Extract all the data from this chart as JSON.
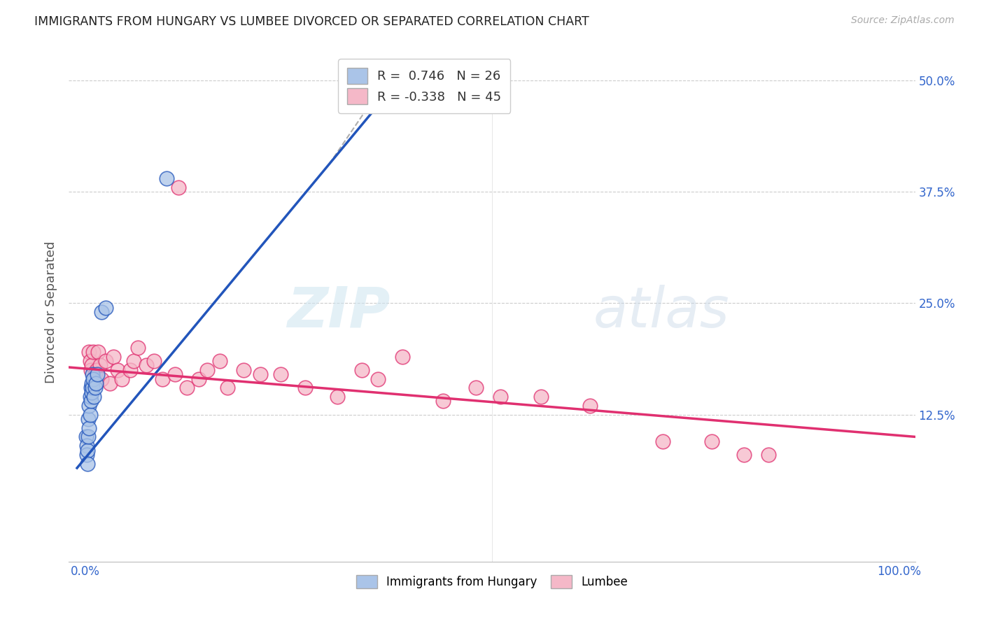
{
  "title": "IMMIGRANTS FROM HUNGARY VS LUMBEE DIVORCED OR SEPARATED CORRELATION CHART",
  "source": "Source: ZipAtlas.com",
  "ylabel": "Divorced or Separated",
  "legend_bottom": [
    "Immigrants from Hungary",
    "Lumbee"
  ],
  "r_hungary": 0.746,
  "n_hungary": 26,
  "r_lumbee": -0.338,
  "n_lumbee": 45,
  "xlim": [
    0.0,
    1.0
  ],
  "ylim": [
    0.0,
    0.52
  ],
  "ytick_labels_right": [
    "50.0%",
    "37.5%",
    "25.0%",
    "12.5%"
  ],
  "ytick_vals_right": [
    0.5,
    0.375,
    0.25,
    0.125
  ],
  "color_hungary": "#aac4e8",
  "color_lumbee": "#f5b8c8",
  "line_color_hungary": "#2255bb",
  "line_color_lumbee": "#e03070",
  "watermark_zip": "ZIP",
  "watermark_atlas": "atlas",
  "hungary_x": [
    0.001,
    0.002,
    0.002,
    0.003,
    0.003,
    0.004,
    0.004,
    0.005,
    0.005,
    0.006,
    0.006,
    0.007,
    0.007,
    0.008,
    0.008,
    0.009,
    0.009,
    0.01,
    0.011,
    0.012,
    0.013,
    0.015,
    0.02,
    0.025,
    0.1,
    0.35
  ],
  "hungary_y": [
    0.1,
    0.09,
    0.08,
    0.085,
    0.07,
    0.12,
    0.1,
    0.135,
    0.11,
    0.145,
    0.125,
    0.155,
    0.14,
    0.16,
    0.15,
    0.155,
    0.17,
    0.165,
    0.145,
    0.155,
    0.16,
    0.17,
    0.24,
    0.245,
    0.39,
    0.48
  ],
  "lumbee_x": [
    0.005,
    0.006,
    0.007,
    0.008,
    0.01,
    0.012,
    0.014,
    0.016,
    0.018,
    0.02,
    0.025,
    0.03,
    0.035,
    0.04,
    0.045,
    0.055,
    0.06,
    0.065,
    0.075,
    0.085,
    0.095,
    0.11,
    0.125,
    0.14,
    0.15,
    0.165,
    0.175,
    0.195,
    0.215,
    0.24,
    0.27,
    0.31,
    0.34,
    0.36,
    0.39,
    0.44,
    0.48,
    0.51,
    0.56,
    0.62,
    0.71,
    0.77,
    0.81,
    0.84,
    0.115
  ],
  "lumbee_y": [
    0.195,
    0.185,
    0.175,
    0.18,
    0.195,
    0.17,
    0.175,
    0.195,
    0.18,
    0.165,
    0.185,
    0.16,
    0.19,
    0.175,
    0.165,
    0.175,
    0.185,
    0.2,
    0.18,
    0.185,
    0.165,
    0.17,
    0.155,
    0.165,
    0.175,
    0.185,
    0.155,
    0.175,
    0.17,
    0.17,
    0.155,
    0.145,
    0.175,
    0.165,
    0.19,
    0.14,
    0.155,
    0.145,
    0.145,
    0.135,
    0.095,
    0.095,
    0.08,
    0.08,
    0.38
  ],
  "hungary_line_x": [
    -0.01,
    0.385
  ],
  "hungary_line_y_start": 0.065,
  "hungary_line_slope": 1.1,
  "lumbee_line_x": [
    -0.02,
    1.02
  ],
  "lumbee_line_y_start": 0.178,
  "lumbee_line_slope": -0.075,
  "dash_line_x": [
    0.3,
    0.42
  ],
  "dash_line_y_start_offset": 0.395,
  "dash_line_end_y": 0.52
}
